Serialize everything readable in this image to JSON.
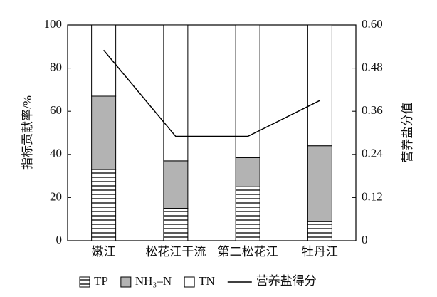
{
  "chart_data": {
    "type": "bar",
    "stacked": true,
    "categories": [
      "嫩江",
      "松花江干流",
      "第二松花江",
      "牡丹江"
    ],
    "series": [
      {
        "name": "TP",
        "color": "#000000",
        "fill": "hatch",
        "values": [
          33,
          15,
          25,
          9
        ]
      },
      {
        "name": "NH₃–N",
        "color": "#b3b3b3",
        "values": [
          34,
          22,
          13.5,
          35
        ]
      },
      {
        "name": "TN",
        "color": "#ffffff",
        "values": [
          33,
          63,
          61.5,
          56
        ]
      },
      {
        "name": "营养盐得分",
        "type": "line",
        "axis": "y2",
        "color": "#000000",
        "values": [
          0.53,
          0.29,
          0.29,
          0.39
        ]
      }
    ],
    "ylabel": "指标贡献率/%",
    "y2label": "营养盐分值",
    "ylim": [
      0,
      100
    ],
    "yticks": [
      0,
      20,
      40,
      60,
      80,
      100
    ],
    "y2lim": [
      0,
      0.6
    ],
    "y2ticks": [
      0,
      {
        "value": 0.12,
        "label": "0.12"
      },
      {
        "value": 0.24,
        "label": "0.24"
      },
      {
        "value": 0.36,
        "label": "0.36"
      },
      {
        "value": 0.48,
        "label": "0.48"
      },
      {
        "value": 0.6,
        "label": "0.60"
      }
    ]
  }
}
